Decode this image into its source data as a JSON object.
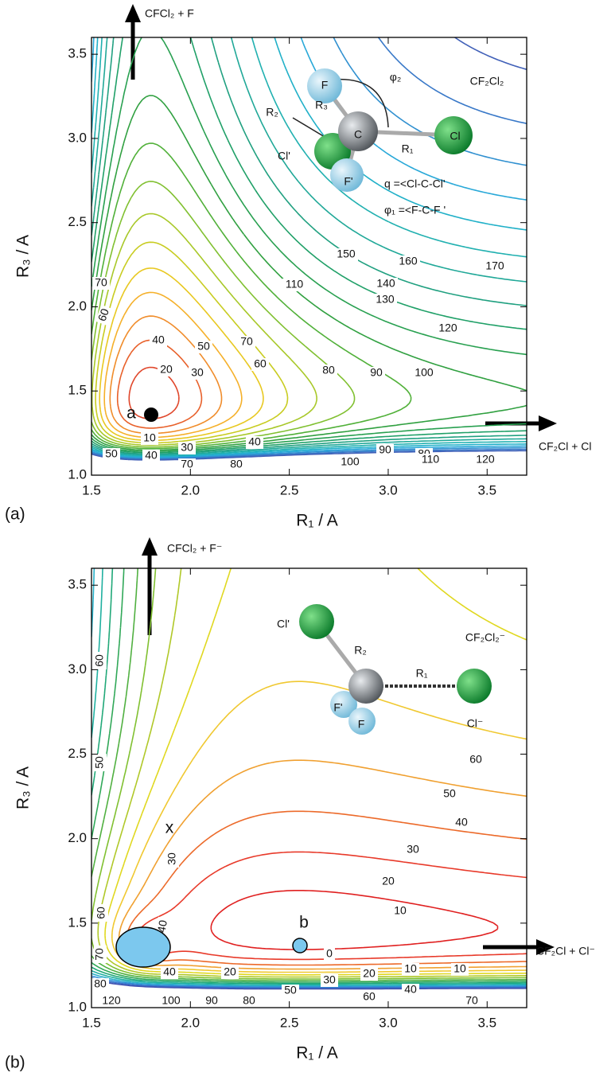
{
  "chart_data": [
    {
      "type": "contour",
      "panel_label": "(a)",
      "x_label": "R₁ / A",
      "y_label": "R₃ / A",
      "xlim": [
        1.5,
        3.7
      ],
      "ylim": [
        1.0,
        3.6
      ],
      "xticks": [
        1.5,
        {
          "value": 2.0,
          "label": "2.0"
        },
        2.5,
        {
          "value": 3.0,
          "label": "3.0"
        },
        3.5
      ],
      "yticks": [
        {
          "value": 1.0,
          "label": "1.0"
        },
        1.5,
        {
          "value": 2.0,
          "label": "2.0"
        },
        2.5,
        {
          "value": 3.0,
          "label": "3.0"
        },
        3.5
      ],
      "levels": [
        10,
        20,
        30,
        40,
        50,
        60,
        70,
        80,
        90,
        100,
        110,
        120,
        130,
        140,
        150,
        160,
        170,
        180,
        190,
        200
      ],
      "colors": [
        "#e0462a",
        "#e8602a",
        "#f08c2a",
        "#f5b02a",
        "#e8c820",
        "#c8cc20",
        "#a8c828",
        "#80c030",
        "#50b038",
        "#30a040",
        "#28a050",
        "#20a068",
        "#20a080",
        "#20a898",
        "#20b0b0",
        "#20b0c8",
        "#28a8d8",
        "#3090d0",
        "#3878c8",
        "#4060b8"
      ],
      "contour_labels": [
        150,
        160,
        170,
        70,
        110,
        140,
        60,
        130,
        40,
        50,
        70,
        120,
        20,
        60,
        30,
        80,
        90,
        100,
        10,
        30,
        40,
        80,
        50,
        40,
        70,
        80,
        100,
        90,
        110,
        120
      ],
      "annotations": {
        "up_product": "CFCl₂ + F",
        "right_product": "CF₂Cl + Cl",
        "point": "a"
      },
      "inset": {
        "f": "F",
        "c": "C",
        "cl": "Cl",
        "cl_prime": "Cl'",
        "f_prime": "F'",
        "r3": "R₃",
        "r2": "R₂",
        "r1": "R₁",
        "phi2": "φ₂",
        "formula": "CF₂Cl₂",
        "q_def": "q  =<Cl-C-Cl'",
        "phi1_def": "φ₁ =<F-C-F '"
      }
    },
    {
      "type": "contour",
      "panel_label": "(b)",
      "x_label": "R₁ / A",
      "y_label": "R₃ / A",
      "xlim": [
        1.5,
        3.7
      ],
      "ylim": [
        1.0,
        3.6
      ],
      "xticks": [
        1.5,
        {
          "value": 2.0,
          "label": "2.0"
        },
        2.5,
        {
          "value": 3.0,
          "label": "3.0"
        },
        3.5
      ],
      "yticks": [
        {
          "value": 1.0,
          "label": "1.0"
        },
        1.5,
        {
          "value": 2.0,
          "label": "2.0"
        },
        2.5,
        {
          "value": 3.0,
          "label": "3.0"
        },
        3.5
      ],
      "levels": [
        0,
        10,
        20,
        30,
        40,
        50,
        60,
        70,
        80,
        90,
        100,
        110,
        120,
        130,
        140,
        150
      ],
      "colors": [
        "#e02020",
        "#e83a2a",
        "#ec6a2a",
        "#f0a030",
        "#f0c830",
        "#e0d820",
        "#b0c828",
        "#80c030",
        "#50b040",
        "#30a858",
        "#20a878",
        "#20b0a0",
        "#28b0c8",
        "#3090d8",
        "#3870c8",
        "#4050b0"
      ],
      "contour_labels": [
        60,
        50,
        60,
        50,
        40,
        30,
        30,
        20,
        10,
        60,
        40,
        70,
        0,
        80,
        40,
        20,
        30,
        20,
        10,
        10,
        60,
        40,
        70,
        120,
        100,
        90,
        80,
        50
      ],
      "annotations": {
        "up_product": "CFCl₂ + F⁻",
        "right_product": "CF₂Cl + Cl⁻",
        "point": "b",
        "saddle": "x"
      },
      "inset": {
        "cl_prime": "Cl'",
        "r2": "R₂",
        "r1": "R₁",
        "formula": "CF₂Cl₂⁻",
        "f_prime": "F'",
        "f": "F",
        "cl": "Cl⁻"
      }
    }
  ]
}
